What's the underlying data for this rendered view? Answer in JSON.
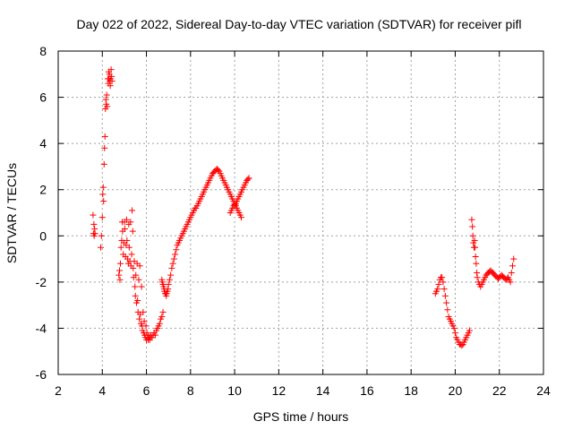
{
  "chart_data": {
    "type": "scatter",
    "title": "Day 022 of 2022, Sidereal Day-to-day VTEC variation (SDTVAR) for receiver pifl",
    "xlabel": "GPS time / hours",
    "ylabel": "SDTVAR / TECUs",
    "xlim": [
      2,
      24
    ],
    "ylim": [
      -6,
      8
    ],
    "xticks": [
      "2",
      "4",
      "6",
      "8",
      "10",
      "12",
      "14",
      "16",
      "18",
      "20",
      "22",
      "24"
    ],
    "yticks": [
      "-6",
      "-4",
      "-2",
      "0",
      "2",
      "4",
      "6",
      "8"
    ],
    "grid": true,
    "marker": "plus",
    "series": [
      {
        "name": "SDTVAR",
        "color": "#ff0000",
        "x": [
          3.58,
          3.6,
          3.62,
          3.63,
          3.65,
          3.67,
          3.93,
          3.96,
          4.0,
          4.02,
          4.04,
          4.06,
          4.08,
          4.1,
          4.12,
          4.14,
          4.16,
          4.18,
          4.2,
          4.22,
          4.25,
          4.27,
          4.29,
          4.3,
          4.32,
          4.34,
          4.36,
          4.38,
          4.4,
          4.42,
          4.44,
          4.75,
          4.78,
          4.8,
          4.82,
          4.85,
          4.88,
          4.9,
          4.92,
          4.95,
          4.98,
          5.0,
          5.02,
          5.05,
          5.08,
          5.1,
          5.12,
          5.15,
          5.18,
          5.2,
          5.22,
          5.25,
          5.28,
          5.3,
          5.33,
          5.35,
          5.38,
          5.4,
          5.42,
          5.45,
          5.48,
          5.5,
          5.52,
          5.55,
          5.58,
          5.6,
          5.62,
          5.65,
          5.68,
          5.7,
          5.72,
          5.75,
          5.78,
          5.8,
          5.82,
          5.85,
          5.88,
          5.9,
          5.92,
          5.95,
          5.98,
          6.0,
          6.02,
          6.05,
          6.08,
          6.1,
          6.12,
          6.15,
          6.18,
          6.2,
          6.25,
          6.3,
          6.35,
          6.4,
          6.45,
          6.5,
          6.55,
          6.6,
          6.65,
          6.7,
          6.75,
          6.7,
          6.72,
          6.75,
          6.78,
          6.8,
          6.82,
          6.85,
          6.88,
          6.9,
          6.92,
          6.95,
          6.98,
          7.0,
          7.05,
          7.1,
          7.15,
          7.2,
          7.25,
          7.3,
          7.35,
          7.4,
          7.45,
          7.5,
          7.55,
          7.6,
          7.65,
          7.7,
          7.75,
          7.8,
          7.85,
          7.9,
          7.95,
          8.0,
          8.05,
          8.1,
          8.15,
          8.2,
          8.25,
          8.3,
          8.35,
          8.4,
          8.45,
          8.5,
          8.55,
          8.6,
          8.65,
          8.7,
          8.75,
          8.8,
          8.85,
          8.9,
          8.95,
          9.0,
          9.05,
          9.1,
          9.15,
          9.2,
          9.25,
          9.3,
          9.35,
          9.4,
          9.45,
          9.5,
          9.55,
          9.6,
          9.65,
          9.7,
          9.75,
          9.8,
          9.85,
          9.9,
          9.95,
          10.0,
          10.05,
          10.1,
          10.15,
          10.2,
          10.25,
          10.3,
          9.8,
          9.85,
          9.9,
          9.95,
          10.0,
          10.05,
          10.1,
          10.15,
          10.2,
          10.25,
          10.3,
          10.35,
          10.4,
          10.45,
          10.5,
          10.55,
          10.6,
          10.65,
          19.1,
          19.15,
          19.2,
          19.25,
          19.3,
          19.35,
          19.4,
          19.45,
          19.5,
          19.55,
          19.6,
          19.65,
          19.7,
          19.75,
          19.8,
          19.85,
          19.9,
          19.95,
          20.0,
          20.05,
          20.1,
          20.15,
          20.2,
          20.25,
          20.3,
          20.35,
          20.4,
          20.45,
          20.5,
          20.55,
          20.6,
          20.65,
          20.75,
          20.78,
          20.8,
          20.82,
          20.85,
          20.88,
          20.9,
          20.92,
          20.95,
          20.98,
          21.0,
          21.05,
          21.1,
          21.15,
          21.2,
          21.25,
          21.3,
          21.35,
          21.4,
          21.45,
          21.5,
          21.55,
          21.6,
          21.65,
          21.7,
          21.75,
          21.8,
          21.85,
          21.9,
          21.95,
          22.0,
          22.05,
          22.1,
          22.15,
          22.2,
          22.25,
          22.3,
          22.35,
          22.4,
          22.45,
          22.5,
          22.55,
          22.6,
          22.65
        ],
        "y": [
          0.9,
          0.1,
          0.5,
          0.0,
          0.3,
          0.1,
          -0.5,
          0.0,
          0.8,
          1.8,
          2.1,
          1.5,
          3.1,
          3.8,
          4.3,
          5.5,
          5.9,
          5.7,
          6.1,
          5.6,
          6.8,
          6.6,
          7.1,
          6.8,
          7.0,
          6.7,
          6.5,
          6.8,
          7.2,
          6.9,
          6.7,
          -1.7,
          -1.5,
          -1.9,
          -1.2,
          -0.5,
          -0.2,
          0.6,
          0.2,
          -0.8,
          -0.3,
          0.6,
          0.3,
          -0.9,
          -0.4,
          0.7,
          -0.2,
          -1.0,
          -1.2,
          0.5,
          -0.5,
          -1.1,
          0.6,
          -1.3,
          -0.8,
          1.1,
          0.2,
          -1.4,
          -1.8,
          -1.1,
          -2.2,
          -2.6,
          -1.7,
          -2.9,
          -1.2,
          -2.8,
          -3.3,
          -1.9,
          -3.6,
          -1.3,
          -3.4,
          -3.8,
          -2.2,
          -3.9,
          -4.1,
          -3.3,
          -4.2,
          -3.7,
          -4.3,
          -4.4,
          -3.9,
          -4.5,
          -4.2,
          -4.4,
          -4.5,
          -4.3,
          -4.4,
          -4.5,
          -4.4,
          -4.3,
          -4.4,
          -4.3,
          -4.2,
          -4.3,
          -4.1,
          -4.0,
          -3.9,
          -3.8,
          -3.6,
          -3.5,
          -3.3,
          -1.9,
          -2.0,
          -2.1,
          -2.2,
          -2.3,
          -2.4,
          -2.5,
          -2.5,
          -2.6,
          -2.5,
          -2.4,
          -2.3,
          -2.1,
          -1.9,
          -1.7,
          -1.4,
          -1.2,
          -1.0,
          -0.8,
          -0.6,
          -0.4,
          -0.3,
          -0.2,
          -0.1,
          0.0,
          0.1,
          0.2,
          0.3,
          0.4,
          0.5,
          0.6,
          0.7,
          0.8,
          0.9,
          1.0,
          1.1,
          1.2,
          1.2,
          1.3,
          1.4,
          1.5,
          1.6,
          1.7,
          1.8,
          1.9,
          2.0,
          2.1,
          2.2,
          2.3,
          2.4,
          2.5,
          2.6,
          2.7,
          2.75,
          2.8,
          2.85,
          2.9,
          2.85,
          2.8,
          2.7,
          2.6,
          2.5,
          2.4,
          2.3,
          2.2,
          2.1,
          2.0,
          1.9,
          1.8,
          1.7,
          1.6,
          1.5,
          1.4,
          1.3,
          1.2,
          1.1,
          1.0,
          0.9,
          0.8,
          1.0,
          1.1,
          1.2,
          1.3,
          1.35,
          1.4,
          1.5,
          1.6,
          1.7,
          1.8,
          1.9,
          2.0,
          2.1,
          2.2,
          2.3,
          2.4,
          2.45,
          2.5,
          -2.5,
          -2.4,
          -2.3,
          -2.1,
          -1.9,
          -1.8,
          -1.8,
          -2.0,
          -2.3,
          -2.6,
          -2.9,
          -3.2,
          -3.5,
          -3.6,
          -3.7,
          -3.8,
          -3.9,
          -4.0,
          -4.2,
          -4.4,
          -4.5,
          -4.6,
          -4.7,
          -4.7,
          -4.75,
          -4.7,
          -4.6,
          -4.5,
          -4.4,
          -4.3,
          -4.2,
          -4.1,
          0.7,
          0.4,
          0.0,
          -0.3,
          -0.5,
          -0.2,
          -0.5,
          -0.9,
          -1.2,
          -1.6,
          -1.8,
          -2.0,
          -2.1,
          -2.2,
          -2.1,
          -2.0,
          -1.9,
          -1.8,
          -1.7,
          -1.65,
          -1.6,
          -1.55,
          -1.5,
          -1.55,
          -1.6,
          -1.65,
          -1.7,
          -1.75,
          -1.8,
          -1.85,
          -1.8,
          -1.75,
          -1.7,
          -1.75,
          -1.8,
          -1.85,
          -1.9,
          -1.85,
          -1.8,
          -1.9,
          -2.0,
          -1.6,
          -1.3,
          -1.0
        ]
      }
    ]
  }
}
